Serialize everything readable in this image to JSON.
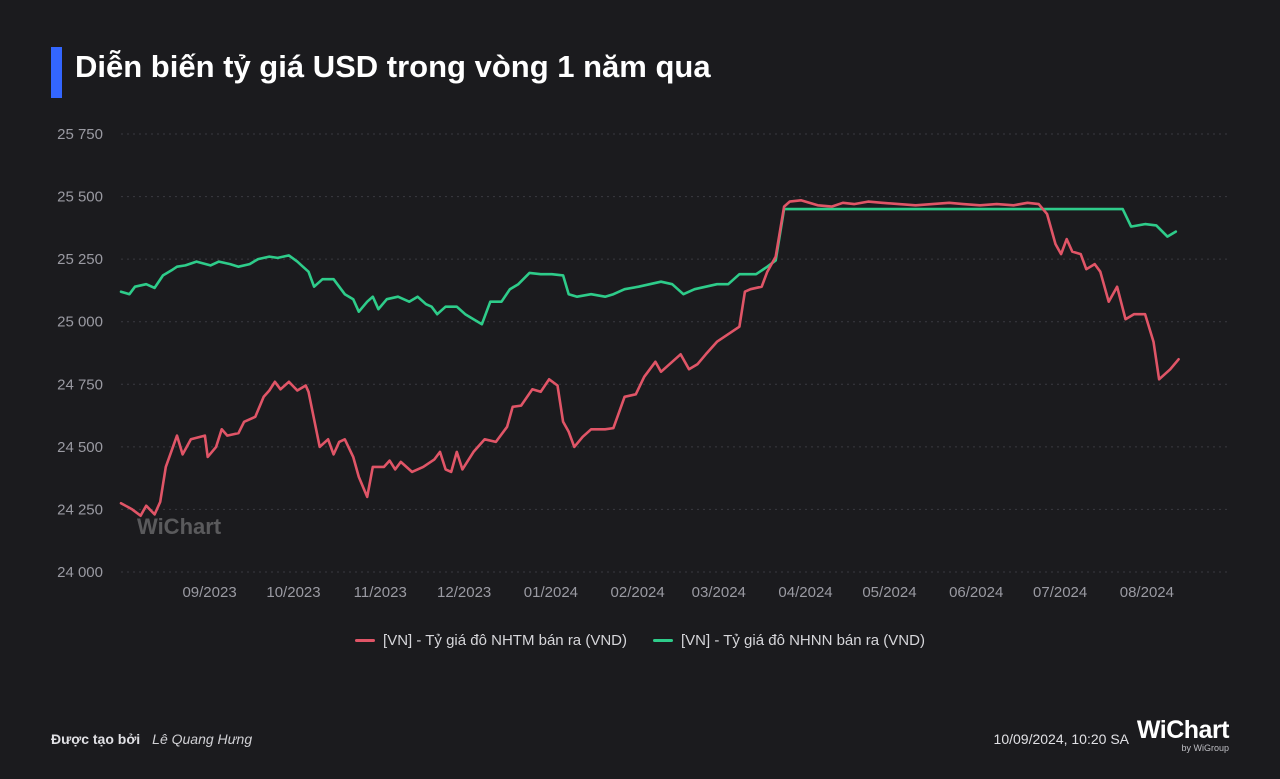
{
  "title": "Diễn biến tỷ giá USD trong vòng 1 năm qua",
  "watermark": "WiChart",
  "footer": {
    "created_by_label": "Được tạo bởi",
    "author": "Lê Quang Hưng",
    "timestamp": "10/09/2024, 10:20 SA",
    "logo": "WiChart",
    "logo_sub": "by WiGroup"
  },
  "colors": {
    "background": "#1b1b1e",
    "accent": "#3366ff",
    "nhtm": "#e05567",
    "nhnn": "#2ecc8a",
    "grid": "#3a3a40",
    "axis_text": "#9a9aa2"
  },
  "chart_data": {
    "type": "line",
    "title": "Diễn biến tỷ giá USD trong vòng 1 năm qua",
    "xlabel": "",
    "ylabel": "",
    "ylim": [
      24000,
      25750
    ],
    "y_ticks": [
      24000,
      24250,
      24500,
      24750,
      25000,
      25250,
      25500,
      25750
    ],
    "y_tick_labels": [
      "24 000",
      "24 250",
      "24 500",
      "24 750",
      "25 000",
      "25 250",
      "25 500",
      "25 750"
    ],
    "x_range": [
      "2023-08-10",
      "2024-09-09"
    ],
    "x_ticks": [
      {
        "date": "2023-09-01",
        "label": "09/2023"
      },
      {
        "date": "2023-10-01",
        "label": "10/2023"
      },
      {
        "date": "2023-11-01",
        "label": "11/2023"
      },
      {
        "date": "2023-12-01",
        "label": "12/2023"
      },
      {
        "date": "2024-01-01",
        "label": "01/2024"
      },
      {
        "date": "2024-02-01",
        "label": "02/2024"
      },
      {
        "date": "2024-03-01",
        "label": "03/2024"
      },
      {
        "date": "2024-04-01",
        "label": "04/2024"
      },
      {
        "date": "2024-05-01",
        "label": "05/2024"
      },
      {
        "date": "2024-06-01",
        "label": "06/2024"
      },
      {
        "date": "2024-07-01",
        "label": "07/2024"
      },
      {
        "date": "2024-08-01",
        "label": "08/2024"
      }
    ],
    "grid": true,
    "legend_position": "bottom",
    "series": [
      {
        "name": "[VN] - Tỷ giá đô NHTM bán ra (VND)",
        "color": "#e05567",
        "points": [
          [
            "2023-08-10",
            24275
          ],
          [
            "2023-08-14",
            24250
          ],
          [
            "2023-08-17",
            24225
          ],
          [
            "2023-08-19",
            24265
          ],
          [
            "2023-08-22",
            24230
          ],
          [
            "2023-08-24",
            24280
          ],
          [
            "2023-08-26",
            24420
          ],
          [
            "2023-08-30",
            24545
          ],
          [
            "2023-09-01",
            24470
          ],
          [
            "2023-09-04",
            24530
          ],
          [
            "2023-09-09",
            24545
          ],
          [
            "2023-09-10",
            24460
          ],
          [
            "2023-09-13",
            24500
          ],
          [
            "2023-09-15",
            24570
          ],
          [
            "2023-09-17",
            24545
          ],
          [
            "2023-09-21",
            24555
          ],
          [
            "2023-09-23",
            24600
          ],
          [
            "2023-09-27",
            24620
          ],
          [
            "2023-09-30",
            24700
          ],
          [
            "2023-10-02",
            24725
          ],
          [
            "2023-10-04",
            24760
          ],
          [
            "2023-10-06",
            24730
          ],
          [
            "2023-10-09",
            24760
          ],
          [
            "2023-10-12",
            24725
          ],
          [
            "2023-10-15",
            24745
          ],
          [
            "2023-10-16",
            24720
          ],
          [
            "2023-10-20",
            24500
          ],
          [
            "2023-10-23",
            24530
          ],
          [
            "2023-10-25",
            24470
          ],
          [
            "2023-10-27",
            24520
          ],
          [
            "2023-10-29",
            24530
          ],
          [
            "2023-11-01",
            24460
          ],
          [
            "2023-11-03",
            24380
          ],
          [
            "2023-11-06",
            24300
          ],
          [
            "2023-11-08",
            24420
          ],
          [
            "2023-11-12",
            24420
          ],
          [
            "2023-11-14",
            24445
          ],
          [
            "2023-11-16",
            24410
          ],
          [
            "2023-11-18",
            24440
          ],
          [
            "2023-11-22",
            24400
          ],
          [
            "2023-11-26",
            24420
          ],
          [
            "2023-11-30",
            24450
          ],
          [
            "2023-12-02",
            24480
          ],
          [
            "2023-12-04",
            24410
          ],
          [
            "2023-12-06",
            24400
          ],
          [
            "2023-12-08",
            24480
          ],
          [
            "2023-12-10",
            24410
          ],
          [
            "2023-12-14",
            24480
          ],
          [
            "2023-12-18",
            24530
          ],
          [
            "2023-12-22",
            24520
          ],
          [
            "2023-12-26",
            24580
          ],
          [
            "2023-12-28",
            24660
          ],
          [
            "2023-12-31",
            24665
          ],
          [
            "2024-01-04",
            24730
          ],
          [
            "2024-01-07",
            24720
          ],
          [
            "2024-01-10",
            24770
          ],
          [
            "2024-01-13",
            24745
          ],
          [
            "2024-01-15",
            24600
          ],
          [
            "2024-01-17",
            24560
          ],
          [
            "2024-01-19",
            24500
          ],
          [
            "2024-01-22",
            24540
          ],
          [
            "2024-01-25",
            24570
          ],
          [
            "2024-01-30",
            24570
          ],
          [
            "2024-02-02",
            24575
          ],
          [
            "2024-02-06",
            24700
          ],
          [
            "2024-02-10",
            24710
          ],
          [
            "2024-02-13",
            24780
          ],
          [
            "2024-02-17",
            24840
          ],
          [
            "2024-02-19",
            24800
          ],
          [
            "2024-02-23",
            24840
          ],
          [
            "2024-02-26",
            24870
          ],
          [
            "2024-02-29",
            24810
          ],
          [
            "2024-03-03",
            24830
          ],
          [
            "2024-03-06",
            24870
          ],
          [
            "2024-03-10",
            24920
          ],
          [
            "2024-03-14",
            24950
          ],
          [
            "2024-03-18",
            24980
          ],
          [
            "2024-03-20",
            25120
          ],
          [
            "2024-03-22",
            25130
          ],
          [
            "2024-03-26",
            25140
          ],
          [
            "2024-03-28",
            25200
          ],
          [
            "2024-03-31",
            25260
          ],
          [
            "2024-04-03",
            25460
          ],
          [
            "2024-04-05",
            25480
          ],
          [
            "2024-04-09",
            25485
          ],
          [
            "2024-04-15",
            25465
          ],
          [
            "2024-04-20",
            25460
          ],
          [
            "2024-04-24",
            25475
          ],
          [
            "2024-04-28",
            25470
          ],
          [
            "2024-05-03",
            25480
          ],
          [
            "2024-05-08",
            25475
          ],
          [
            "2024-05-14",
            25470
          ],
          [
            "2024-05-20",
            25465
          ],
          [
            "2024-05-26",
            25470
          ],
          [
            "2024-06-01",
            25475
          ],
          [
            "2024-06-06",
            25470
          ],
          [
            "2024-06-12",
            25465
          ],
          [
            "2024-06-18",
            25470
          ],
          [
            "2024-06-24",
            25465
          ],
          [
            "2024-06-29",
            25475
          ],
          [
            "2024-07-03",
            25470
          ],
          [
            "2024-07-06",
            25430
          ],
          [
            "2024-07-09",
            25310
          ],
          [
            "2024-07-11",
            25270
          ],
          [
            "2024-07-13",
            25330
          ],
          [
            "2024-07-15",
            25280
          ],
          [
            "2024-07-18",
            25270
          ],
          [
            "2024-07-20",
            25210
          ],
          [
            "2024-07-23",
            25230
          ],
          [
            "2024-07-25",
            25200
          ],
          [
            "2024-07-28",
            25080
          ],
          [
            "2024-07-31",
            25140
          ],
          [
            "2024-08-03",
            25010
          ],
          [
            "2024-08-06",
            25030
          ],
          [
            "2024-08-10",
            25030
          ],
          [
            "2024-08-13",
            24920
          ],
          [
            "2024-08-15",
            24770
          ],
          [
            "2024-08-19",
            24810
          ],
          [
            "2024-08-22",
            24850
          ]
        ]
      },
      {
        "name": "[VN] - Tỷ giá đô NHNN bán ra (VND)",
        "color": "#2ecc8a",
        "points": [
          [
            "2023-08-10",
            25120
          ],
          [
            "2023-08-13",
            25110
          ],
          [
            "2023-08-15",
            25140
          ],
          [
            "2023-08-19",
            25150
          ],
          [
            "2023-08-22",
            25135
          ],
          [
            "2023-08-25",
            25185
          ],
          [
            "2023-08-28",
            25205
          ],
          [
            "2023-08-30",
            25220
          ],
          [
            "2023-09-02",
            25225
          ],
          [
            "2023-09-06",
            25240
          ],
          [
            "2023-09-11",
            25225
          ],
          [
            "2023-09-14",
            25240
          ],
          [
            "2023-09-18",
            25230
          ],
          [
            "2023-09-21",
            25220
          ],
          [
            "2023-09-25",
            25230
          ],
          [
            "2023-09-28",
            25250
          ],
          [
            "2023-10-02",
            25260
          ],
          [
            "2023-10-05",
            25255
          ],
          [
            "2023-10-09",
            25265
          ],
          [
            "2023-10-12",
            25240
          ],
          [
            "2023-10-14",
            25220
          ],
          [
            "2023-10-16",
            25200
          ],
          [
            "2023-10-18",
            25140
          ],
          [
            "2023-10-21",
            25170
          ],
          [
            "2023-10-25",
            25170
          ],
          [
            "2023-10-29",
            25110
          ],
          [
            "2023-11-01",
            25090
          ],
          [
            "2023-11-03",
            25040
          ],
          [
            "2023-11-06",
            25080
          ],
          [
            "2023-11-08",
            25100
          ],
          [
            "2023-11-10",
            25050
          ],
          [
            "2023-11-13",
            25090
          ],
          [
            "2023-11-17",
            25100
          ],
          [
            "2023-11-21",
            25080
          ],
          [
            "2023-11-24",
            25100
          ],
          [
            "2023-11-27",
            25070
          ],
          [
            "2023-11-29",
            25060
          ],
          [
            "2023-12-01",
            25030
          ],
          [
            "2023-12-04",
            25060
          ],
          [
            "2023-12-08",
            25060
          ],
          [
            "2023-12-11",
            25030
          ],
          [
            "2023-12-14",
            25010
          ],
          [
            "2023-12-17",
            24990
          ],
          [
            "2023-12-20",
            25080
          ],
          [
            "2023-12-24",
            25080
          ],
          [
            "2023-12-27",
            25130
          ],
          [
            "2023-12-30",
            25150
          ],
          [
            "2024-01-03",
            25195
          ],
          [
            "2024-01-07",
            25190
          ],
          [
            "2024-01-11",
            25190
          ],
          [
            "2024-01-15",
            25185
          ],
          [
            "2024-01-17",
            25110
          ],
          [
            "2024-01-20",
            25100
          ],
          [
            "2024-01-25",
            25110
          ],
          [
            "2024-01-30",
            25100
          ],
          [
            "2024-02-02",
            25110
          ],
          [
            "2024-02-06",
            25130
          ],
          [
            "2024-02-11",
            25140
          ],
          [
            "2024-02-15",
            25150
          ],
          [
            "2024-02-19",
            25160
          ],
          [
            "2024-02-23",
            25150
          ],
          [
            "2024-02-27",
            25110
          ],
          [
            "2024-03-02",
            25130
          ],
          [
            "2024-03-06",
            25140
          ],
          [
            "2024-03-10",
            25150
          ],
          [
            "2024-03-14",
            25150
          ],
          [
            "2024-03-18",
            25190
          ],
          [
            "2024-03-24",
            25190
          ],
          [
            "2024-03-28",
            25220
          ],
          [
            "2024-03-31",
            25245
          ],
          [
            "2024-04-03",
            25450
          ],
          [
            "2024-04-30",
            25450
          ],
          [
            "2024-05-31",
            25450
          ],
          [
            "2024-06-30",
            25450
          ],
          [
            "2024-07-31",
            25450
          ],
          [
            "2024-08-02",
            25450
          ],
          [
            "2024-08-05",
            25380
          ],
          [
            "2024-08-10",
            25390
          ],
          [
            "2024-08-14",
            25385
          ],
          [
            "2024-08-18",
            25340
          ],
          [
            "2024-08-21",
            25360
          ]
        ]
      }
    ]
  }
}
